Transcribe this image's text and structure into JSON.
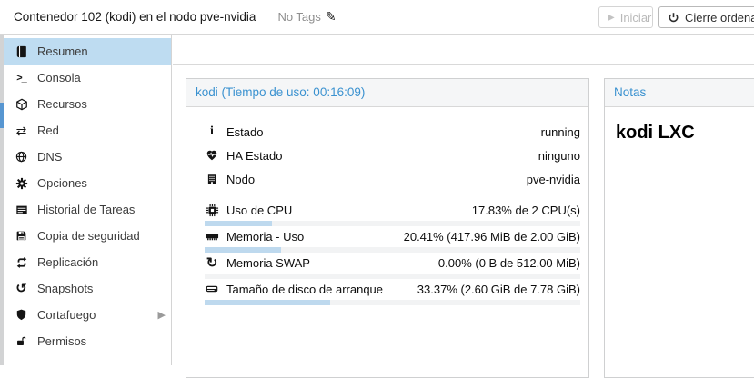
{
  "header": {
    "title": "Contenedor 102 (kodi) en el nodo pve-nvidia",
    "tags_label": "No Tags",
    "tags_icon": "pencil-icon",
    "start_label": "Iniciar",
    "start_icon": "play-icon",
    "shutdown_label": "Cierre ordenado",
    "shutdown_icon": "power-icon"
  },
  "sidebar": {
    "items": [
      {
        "label": "Resumen",
        "icon": "book-icon",
        "selected": true
      },
      {
        "label": "Consola",
        "icon": "terminal-icon",
        "selected": false
      },
      {
        "label": "Recursos",
        "icon": "cube-icon",
        "selected": false
      },
      {
        "label": "Red",
        "icon": "exchange-arrows-icon",
        "selected": false
      },
      {
        "label": "DNS",
        "icon": "globe-icon",
        "selected": false
      },
      {
        "label": "Opciones",
        "icon": "gear-icon",
        "selected": false
      },
      {
        "label": "Historial de Tareas",
        "icon": "task-list-icon",
        "selected": false
      },
      {
        "label": "Copia de seguridad",
        "icon": "floppy-icon",
        "selected": false
      },
      {
        "label": "Replicación",
        "icon": "replication-icon",
        "selected": false
      },
      {
        "label": "Snapshots",
        "icon": "history-icon",
        "selected": false
      },
      {
        "label": "Cortafuego",
        "icon": "shield-icon",
        "selected": false,
        "has_submenu": true
      },
      {
        "label": "Permisos",
        "icon": "unlock-icon",
        "selected": false
      }
    ]
  },
  "status_panel": {
    "title": "kodi (Tiempo de uso: 00:16:09)",
    "rows": [
      {
        "label": "Estado",
        "icon": "info-icon",
        "value": "running"
      },
      {
        "label": "HA Estado",
        "icon": "heartbeat-icon",
        "value": "ninguno"
      },
      {
        "label": "Nodo",
        "icon": "building-icon",
        "value": "pve-nvidia"
      }
    ],
    "usage_rows": [
      {
        "label": "Uso de CPU",
        "icon": "cpu-icon",
        "value": "17.83% de 2 CPU(s)",
        "percent": 17.83
      },
      {
        "label": "Memoria - Uso",
        "icon": "memory-icon",
        "value": "20.41% (417.96 MiB de 2.00 GiB)",
        "percent": 20.41
      },
      {
        "label": "Memoria SWAP",
        "icon": "swap-icon",
        "value": "0.00% (0 B de 512.00 MiB)",
        "percent": 0
      },
      {
        "label": "Tamaño de disco de arranque",
        "icon": "hdd-icon",
        "value": "33.37% (2.60 GiB de 7.78 GiB)",
        "percent": 33.37
      }
    ]
  },
  "notes_panel": {
    "title": "Notas",
    "content": "kodi LXC"
  },
  "colors": {
    "accent": "#3b92d0",
    "selected_bg": "#bedcf1",
    "bar_fill": "#bed9ee",
    "bar_track": "#f2f3f4"
  }
}
